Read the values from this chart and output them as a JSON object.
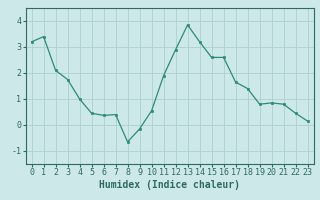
{
  "x": [
    0,
    1,
    2,
    3,
    4,
    5,
    6,
    7,
    8,
    9,
    10,
    11,
    12,
    13,
    14,
    15,
    16,
    17,
    18,
    19,
    20,
    21,
    22,
    23
  ],
  "y": [
    3.2,
    3.4,
    2.1,
    1.75,
    1.0,
    0.45,
    0.37,
    0.4,
    -0.65,
    -0.15,
    0.55,
    1.9,
    2.9,
    3.85,
    3.2,
    2.6,
    2.6,
    1.65,
    1.4,
    0.8,
    0.85,
    0.8,
    0.45,
    0.15
  ],
  "xlabel": "Humidex (Indice chaleur)",
  "ylim": [
    -1.5,
    4.5
  ],
  "xlim": [
    -0.5,
    23.5
  ],
  "yticks": [
    -1,
    0,
    1,
    2,
    3,
    4
  ],
  "xticks": [
    0,
    1,
    2,
    3,
    4,
    5,
    6,
    7,
    8,
    9,
    10,
    11,
    12,
    13,
    14,
    15,
    16,
    17,
    18,
    19,
    20,
    21,
    22,
    23
  ],
  "line_color": "#2e8b74",
  "marker_color": "#2e8b74",
  "bg_color": "#cce8e8",
  "grid_color": "#aed0d0",
  "spine_color": "#2e6b5e",
  "xlabel_fontsize": 7,
  "tick_fontsize": 6
}
